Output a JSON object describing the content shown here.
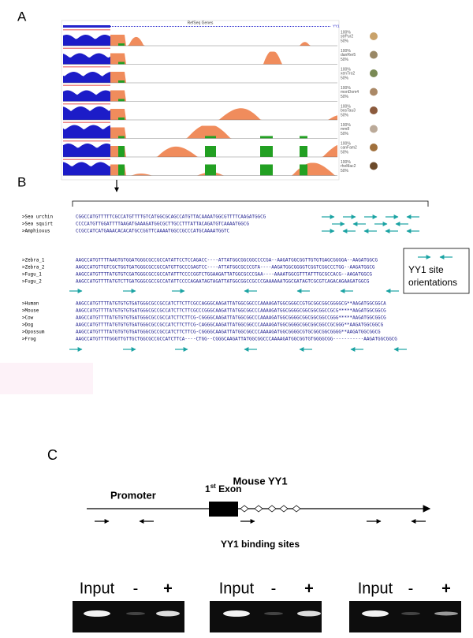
{
  "panel_a": {
    "label": "A",
    "track_title": "RefSeq Genes",
    "gene": "YY1",
    "tracks": [
      {
        "name": "strPur2",
        "max": "100%",
        "mid": "50%"
      },
      {
        "name": "danRer5",
        "max": "100%",
        "mid": "50%"
      },
      {
        "name": "xenTro2",
        "max": "100%",
        "mid": "50%"
      },
      {
        "name": "monDom4",
        "max": "100%",
        "mid": "50%"
      },
      {
        "name": "bosTau3",
        "max": "100%",
        "mid": "50%"
      },
      {
        "name": "mm8",
        "max": "100%",
        "mid": "50%"
      },
      {
        "name": "canFam2",
        "max": "100%",
        "mid": "50%"
      },
      {
        "name": "rheMac2",
        "max": "100%",
        "mid": "50%"
      }
    ]
  },
  "panel_b": {
    "label": "B",
    "groups": [
      [
        {
          "name": ">Sea urchin",
          "seq": "CGGCCATGTTTTTCGCCATGTTTTGTCATGGCGCAGCCATGTTACAAAATGGCGTTTTCAAGATGGCG"
        },
        {
          "name": ">Sea squirt",
          "seq": "CCCCATGTTGGATTTTAAGATGAAAGATGGCGCTTGCCTTTATTACAGATGTCAAAATGGCG"
        },
        {
          "name": ">Amphioxus",
          "seq": "CCGCCATCATGAAACACACATGCCGGTTCAAAATGGCCGCCCATGCAAAATGGTC"
        }
      ],
      [
        {
          "name": ">Zebra_1",
          "seq": "AAGCCATGTTTTAAGTGTGGATGGGCGCCGCCATATTCCTCCAGACC----ATTATGGCGGCGGCCCCGA--AAGATGGCGGTTGTGTGAGCGGGGA--AAGATGGCG"
        },
        {
          "name": ">Zebra_2",
          "seq": "AAGCCATGTTGTCGCTGGTGATGGGCGCCGCCATGTTGCCCGAGTCC----ATTATGGCGCCCGTA----AAGATGGCGGGGTCGGTCGGCCCTGG--AAGATGGCG"
        },
        {
          "name": ">Fugu_1",
          "seq": "AAGCCATGTTTTATGTGTCGATGGGCGCCGCCATATTTCCCCGGTCTGGAAGATTATGGCGCCCGAA----AAAATGGCGTTTATTTGCGCCACG--AAGATGGCG"
        },
        {
          "name": ">Fugu_2",
          "seq": "AAGCCATGTTTTATGTCTTGATGGGCGCCGCCATATTCCCCAGAATAGTAGATTATGGCGGCCGCCCGAAAAAATGGCGATAGTCGCGTCAGACAGAAGATGGCG"
        }
      ],
      [
        {
          "name": ">Human",
          "seq": "AAGCCATGTTTTATGTGTGTGATGGGCGCCGCCATCTTCTTCGCCAGGGCAAGATTATGGCGGCCCAAAAGATGGCGGGCCGTGCGGCGGCGGGGCG**AAGATGGCGGCA"
        },
        {
          "name": ">Mouse",
          "seq": "AAGCCATGTTTTATGTGTGTGATGGGCGCCGCCATCTTCTTCGCCCGGGCAAGATTATGGCGGCCCAAAAGATGGCGGGGCGGCGGCGGCCGCG*****AAGATGGCGGCG"
        },
        {
          "name": ">Cow",
          "seq": "AAGCCATGTTTTATGTGTGTGATGGGCGCCGCCATCTTCTTCG-CGGGGCAAGATTATGGCGGCCCAAAAGATGGCGGGGCGGCGGCGGCCGGG*****AAGATGGCGGCG"
        },
        {
          "name": ">Dog",
          "seq": "AAGCCATGTTTTATGTGTGTGATGGGCGCCGCCATCTTCTTCG-CAGGGCAAGATTATGGCGGCCCAAAAGATGGCGGGGCGGCGGCGGCCGCGGG**AAGATGGCGGCG"
        },
        {
          "name": ">Opossum",
          "seq": "AAGCCATGTTTTATGTGTGTGATGGGCGCCGCCATCTTCTTCG-CGGGGCAAGATTATGGCGGCCCAAAAGATGGCGGGGCGTGCGGCGGCGGGG**AAGATGGCGGCG"
        },
        {
          "name": ">Frog",
          "seq": "AAGCCATGTTTTGGGTTGTTGCTGGCGCCGCCATCTTCA----CTGG--CGGGCAAGATTATGGCGGCCCAAAAGATGGCGGTGTGGGGCGG-----------AAGATGGCGGCG"
        }
      ]
    ],
    "legend": [
      "YY1 site",
      "orientations"
    ]
  },
  "panel_c": {
    "label": "C",
    "title": "Mouse YY1",
    "promoter": "Promoter",
    "exon": {
      "number": "1",
      "suffix": "st",
      "text": " Exon"
    },
    "sites_label": "YY1 binding sites",
    "gels": [
      [
        "Input",
        "-",
        "+"
      ],
      [
        "Input",
        "-",
        "+"
      ],
      [
        "Input",
        "-",
        "+"
      ]
    ]
  }
}
